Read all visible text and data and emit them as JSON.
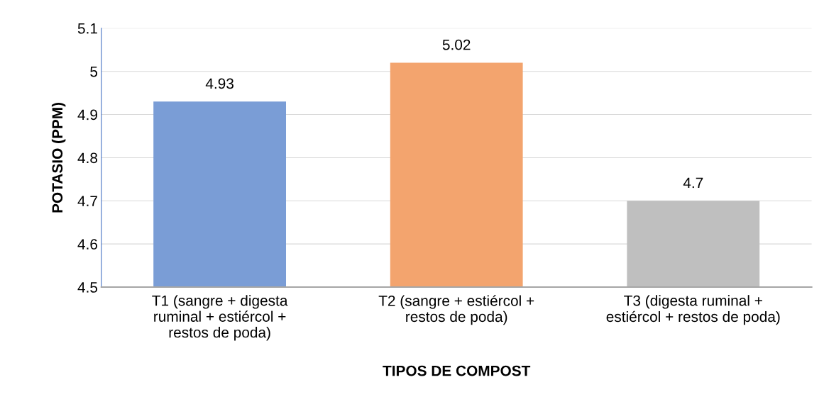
{
  "chart_data": {
    "type": "bar",
    "xlabel": "TIPOS DE COMPOST",
    "ylabel": "POTASIO (PPM)",
    "categories": [
      "T1 (sangre + digesta\nruminal + estiércol +\nrestos de poda)",
      "T2 (sangre + estiércol +\nrestos de poda)",
      "T3 (digesta ruminal +\nestiércol + restos de poda)"
    ],
    "values": [
      4.93,
      5.02,
      4.7
    ],
    "colors": [
      "#7a9dd6",
      "#f3a46e",
      "#bfbfbf"
    ],
    "ylim": [
      4.5,
      5.1
    ],
    "yticks": [
      4.5,
      4.6,
      4.7,
      4.8,
      4.9,
      5,
      5.1
    ],
    "grid": "y",
    "data_labels": true
  }
}
